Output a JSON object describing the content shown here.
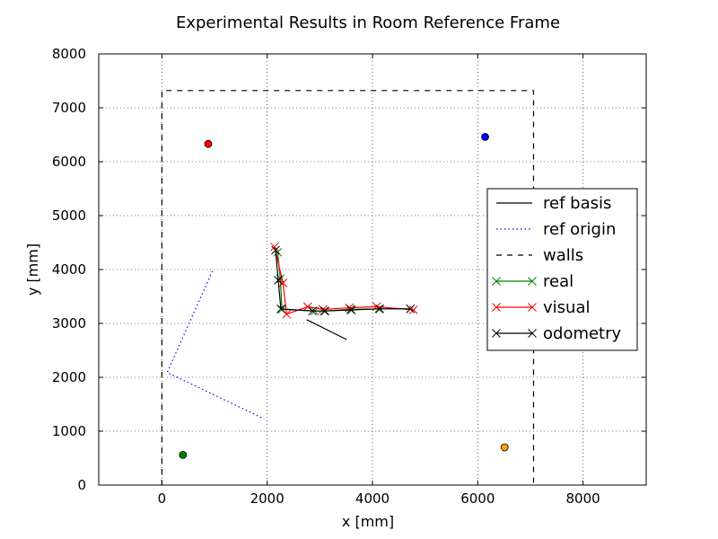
{
  "chart_data": {
    "type": "line",
    "title": "Experimental Results in Room Reference Frame",
    "xlabel": "x [mm]",
    "ylabel": "y [mm]",
    "xlim": [
      -1200,
      9200
    ],
    "ylim": [
      0,
      8000
    ],
    "xticks": [
      0,
      2000,
      4000,
      6000,
      8000
    ],
    "yticks": [
      0,
      1000,
      2000,
      3000,
      4000,
      5000,
      6000,
      7000,
      8000
    ],
    "grid": true,
    "legend_position": "center-right",
    "series": [
      {
        "name": "ref basis",
        "style": "solid",
        "color": "#000000",
        "marker": "none",
        "x": [
          2750,
          3510
        ],
        "y": [
          3070,
          2700
        ]
      },
      {
        "name": "ref origin",
        "style": "dotted",
        "color": "#0000ff",
        "marker": "none",
        "x": [
          960,
          100,
          1940
        ],
        "y": [
          3970,
          2090,
          1230
        ]
      },
      {
        "name": "walls",
        "style": "dashed",
        "color": "#000000",
        "marker": "none",
        "x": [
          0,
          0,
          7060,
          7060
        ],
        "y": [
          0,
          7320,
          7320,
          0
        ]
      },
      {
        "name": "real",
        "style": "solid",
        "color": "#008000",
        "marker": "x",
        "x": [
          2200,
          2250,
          2280,
          2900,
          3080,
          3580,
          4120,
          4720
        ],
        "y": [
          4320,
          3830,
          3260,
          3230,
          3230,
          3260,
          3270,
          3270
        ]
      },
      {
        "name": "visual",
        "style": "solid",
        "color": "#ff0000",
        "marker": "x",
        "x": [
          2140,
          2300,
          2370,
          2770,
          3060,
          3560,
          4080,
          4780
        ],
        "y": [
          4420,
          3750,
          3170,
          3310,
          3260,
          3290,
          3310,
          3250
        ]
      },
      {
        "name": "odometry",
        "style": "solid",
        "color": "#000000",
        "marker": "x",
        "x": [
          2160,
          2210,
          2260,
          2860,
          3100,
          3600,
          4140,
          4720
        ],
        "y": [
          4360,
          3800,
          3270,
          3230,
          3230,
          3250,
          3270,
          3270
        ]
      }
    ],
    "extra_points": [
      {
        "x": 880,
        "y": 6330,
        "color": "#ff0000"
      },
      {
        "x": 6140,
        "y": 6460,
        "color": "#0000ff"
      },
      {
        "x": 400,
        "y": 560,
        "color": "#008000"
      },
      {
        "x": 6510,
        "y": 700,
        "color": "#ffa500"
      }
    ]
  }
}
